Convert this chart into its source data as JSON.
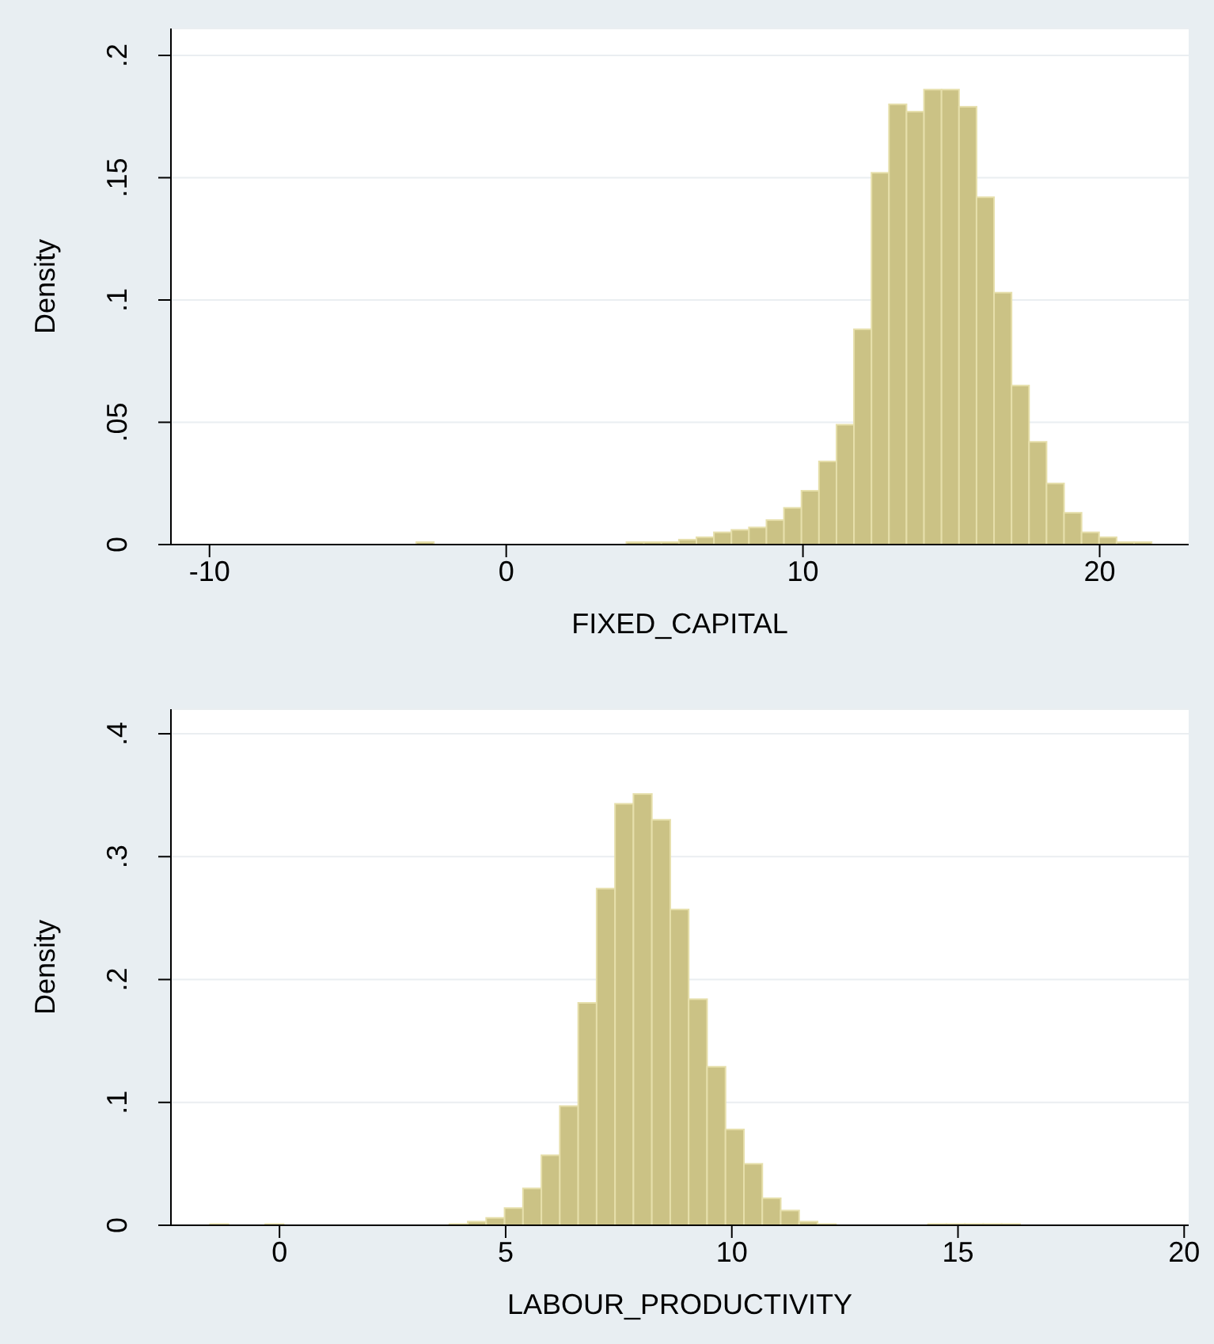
{
  "chart_data": [
    {
      "type": "histogram",
      "xlabel": "FIXED_CAPITAL",
      "ylabel": "Density",
      "color": "#cbc285",
      "grid": "y",
      "xlim": [
        -11.3,
        23
      ],
      "ylim": [
        0,
        0.211
      ],
      "xticks": [
        -10,
        0,
        10,
        20
      ],
      "yticks": [
        {
          "value": 0,
          "label": "0"
        },
        {
          "value": 0.05,
          "label": ".05"
        },
        {
          "value": 0.1,
          "label": ".1"
        },
        {
          "value": 0.15,
          "label": ".15"
        },
        {
          "value": 0.2,
          "label": ".2"
        }
      ],
      "bins": [
        -11.29,
        -10.7,
        -10.11,
        -9.52,
        -8.93,
        -8.34,
        -7.75,
        -7.16,
        -6.57,
        -5.98,
        -5.39,
        -4.8,
        -4.21,
        -3.62,
        -3.03,
        -2.44,
        -1.85,
        -1.26,
        -0.67,
        -0.08,
        0.51,
        1.1,
        1.69,
        2.28,
        2.87,
        3.46,
        4.05,
        4.64,
        5.23,
        5.82,
        6.41,
        7.0,
        7.59,
        8.18,
        8.77,
        9.36,
        9.95,
        10.54,
        11.13,
        11.72,
        12.31,
        12.9,
        13.49,
        14.08,
        14.67,
        15.26,
        15.85,
        16.44,
        17.03,
        17.62,
        18.21,
        18.8,
        19.39,
        19.98,
        20.57,
        21.16,
        21.75,
        22.34,
        22.93
      ],
      "values": [
        0,
        0,
        0,
        0,
        0,
        0,
        0,
        0,
        0,
        0,
        0,
        0,
        0,
        0,
        0.001,
        0,
        0,
        0,
        0,
        0,
        0,
        0,
        0,
        0,
        0,
        0,
        0.001,
        0.001,
        0.001,
        0.002,
        0.003,
        0.005,
        0.006,
        0.007,
        0.01,
        0.015,
        0.022,
        0.034,
        0.049,
        0.088,
        0.152,
        0.18,
        0.177,
        0.186,
        0.186,
        0.179,
        0.142,
        0.103,
        0.065,
        0.042,
        0.025,
        0.013,
        0.005,
        0.003,
        0.001,
        0.001,
        0,
        0
      ]
    },
    {
      "type": "histogram",
      "xlabel": "LABOUR_PRODUCTIVITY",
      "ylabel": "Density",
      "color": "#cbc285",
      "grid": "y",
      "xlim": [
        -2.4,
        20.1
      ],
      "ylim": [
        0,
        0.42
      ],
      "xticks": [
        0,
        5,
        10,
        15,
        20
      ],
      "yticks": [
        {
          "value": 0,
          "label": "0"
        },
        {
          "value": 0.1,
          "label": ".1"
        },
        {
          "value": 0.2,
          "label": ".2"
        },
        {
          "value": 0.3,
          "label": ".3"
        },
        {
          "value": 0.4,
          "label": ".4"
        }
      ],
      "bins": [
        -2.35,
        -1.943,
        -1.536,
        -1.129,
        -0.722,
        -0.315,
        0.092,
        0.499,
        0.906,
        1.313,
        1.72,
        2.127,
        2.534,
        2.941,
        3.348,
        3.755,
        4.162,
        4.569,
        4.976,
        5.383,
        5.79,
        6.197,
        6.604,
        7.011,
        7.418,
        7.825,
        8.232,
        8.639,
        9.046,
        9.453,
        9.86,
        10.267,
        10.674,
        11.081,
        11.488,
        11.895,
        12.302,
        12.709,
        13.116,
        13.523,
        13.93,
        14.337,
        14.744,
        15.151,
        15.558,
        15.965,
        16.372,
        16.779,
        17.186,
        17.593,
        18.0,
        18.407,
        18.814,
        19.221,
        19.628,
        20.035
      ],
      "values": [
        0,
        0,
        0.001,
        0,
        0,
        0.001,
        0,
        0,
        0,
        0,
        0,
        0,
        0,
        0,
        0,
        0.001,
        0.003,
        0.006,
        0.014,
        0.03,
        0.057,
        0.097,
        0.181,
        0.274,
        0.343,
        0.351,
        0.33,
        0.257,
        0.184,
        0.129,
        0.078,
        0.05,
        0.022,
        0.012,
        0.003,
        0.001,
        0,
        0,
        0,
        0,
        0,
        0.001,
        0.001,
        0.001,
        0.001,
        0.001,
        0,
        0,
        0,
        0,
        0,
        0,
        0,
        0,
        0
      ]
    }
  ]
}
